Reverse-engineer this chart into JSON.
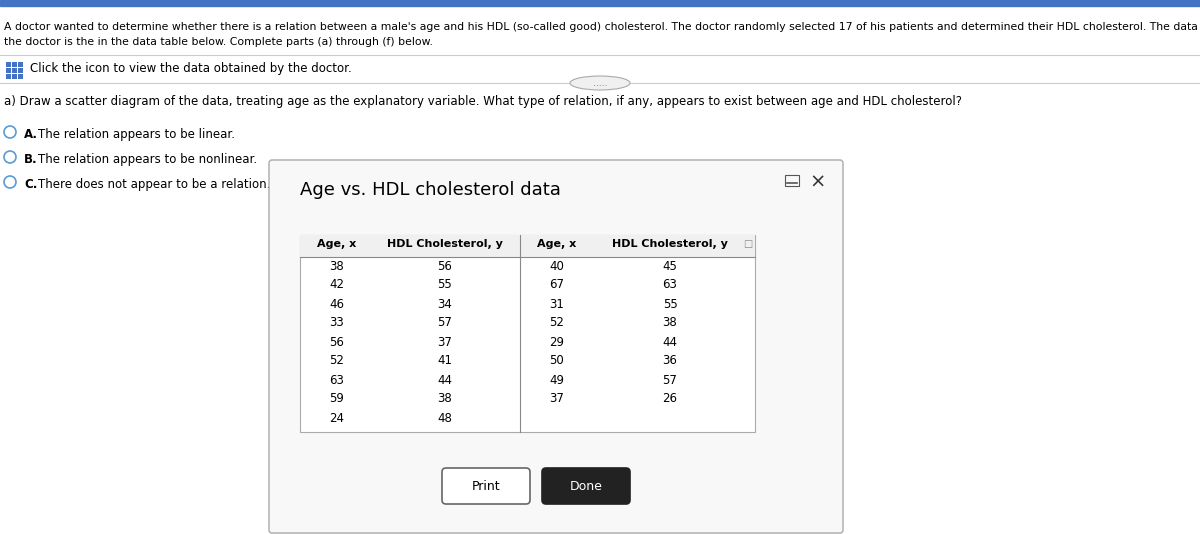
{
  "title_text": "A doctor wanted to determine whether there is a relation between a male's age and his HDL (so-called good) cholesterol. The doctor randomly selected 17 of his patients and determined their HDL cholesterol. The data obtained by",
  "title_text2": "the doctor is the in the data table below. Complete parts (a) through (f) below.",
  "click_text": "Click the icon to view the data obtained by the doctor.",
  "part_a_text": "a) Draw a scatter diagram of the data, treating age as the explanatory variable. What type of relation, if any, appears to exist between age and HDL cholesterol?",
  "option_a": "A.  The relation appears to be linear.",
  "option_b": "B.  The relation appears to be nonlinear.",
  "option_c": "C.  There does not appear to be a relation.",
  "dialog_title": "Age vs. HDL cholesterol data",
  "col_headers": [
    "Age, x",
    "HDL Cholesterol, y",
    "Age, x",
    "HDL Cholesterol, y"
  ],
  "left_age": [
    38,
    42,
    46,
    33,
    56,
    52,
    63,
    59,
    24
  ],
  "left_hdl": [
    56,
    55,
    34,
    57,
    37,
    41,
    44,
    38,
    48
  ],
  "right_age": [
    40,
    67,
    31,
    52,
    29,
    50,
    49,
    37
  ],
  "right_hdl": [
    45,
    63,
    55,
    38,
    44,
    36,
    57,
    26
  ],
  "print_btn": "Print",
  "done_btn": "Done",
  "bg_color": "#ffffff",
  "text_color": "#000000",
  "radio_color": "#5b9bd5",
  "header_bold": true,
  "top_bar_color": "#4472c4",
  "top_bar_height": 0.06,
  "dots_text": ".....",
  "grid_icon_color": "#4472c4"
}
